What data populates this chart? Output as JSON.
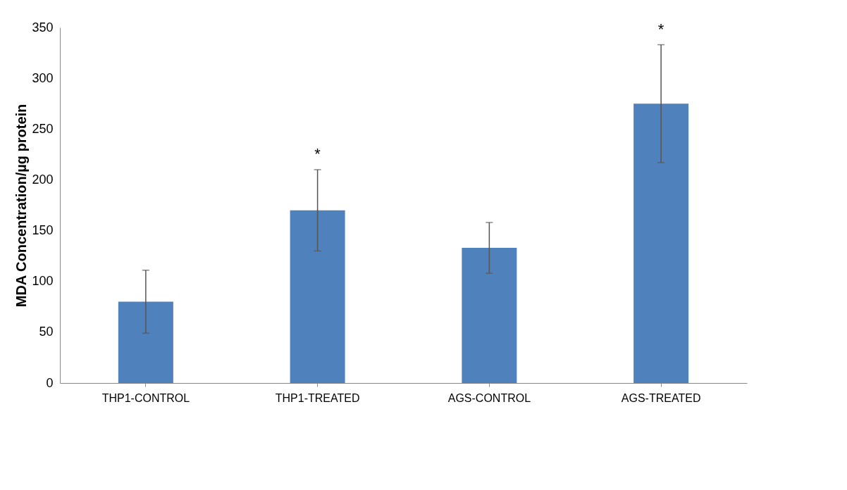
{
  "chart_data": {
    "type": "bar",
    "ylabel": "MDA Concentration/µg protein",
    "categories": [
      "THP1-CONTROL",
      "THP1-TREATED",
      "AGS-CONTROL",
      "AGS-TREATED"
    ],
    "values": [
      80,
      170,
      133,
      275
    ],
    "errors": [
      31,
      40,
      25,
      58
    ],
    "color": "#4f81bd",
    "ylim": [
      0,
      350
    ],
    "yticks": [
      0,
      50,
      100,
      150,
      200,
      250,
      300,
      350
    ],
    "grid": false,
    "annotations": [
      {
        "text": "*",
        "x": "THP1-TREATED",
        "y": 210
      },
      {
        "text": "*",
        "x": "AGS-TREATED",
        "y": 333
      }
    ]
  }
}
